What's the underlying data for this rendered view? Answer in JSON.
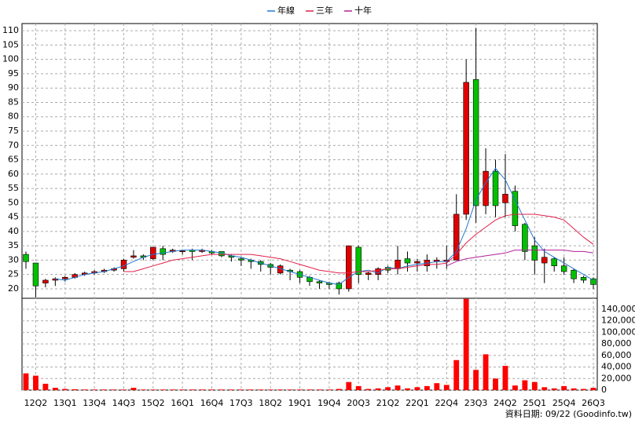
{
  "chart_data": {
    "type": "candlestick",
    "categories": [
      null,
      "12Q2",
      null,
      null,
      "13Q1",
      null,
      null,
      "13Q4",
      null,
      null,
      "14Q3",
      null,
      null,
      "15Q2",
      null,
      null,
      "16Q1",
      null,
      null,
      "16Q4",
      null,
      null,
      "17Q3",
      null,
      null,
      "18Q2",
      null,
      null,
      "19Q1",
      null,
      null,
      "19Q4",
      null,
      null,
      "20Q3",
      null,
      null,
      "21Q2",
      null,
      null,
      "22Q1",
      null,
      null,
      "22Q4",
      null,
      null,
      "23Q3",
      null,
      null,
      "24Q2",
      null,
      null,
      "25Q1",
      null,
      null,
      "25Q4",
      null,
      null,
      "26Q3"
    ],
    "open": [
      32,
      29,
      22,
      23,
      23.5,
      24,
      25,
      25.5,
      26,
      26.5,
      27,
      31,
      31.5,
      30.5,
      34,
      33,
      33,
      33.5,
      33,
      33,
      33,
      31.5,
      30.5,
      30,
      29.5,
      28.5,
      25.5,
      26.5,
      26,
      24,
      22.5,
      22,
      22,
      20,
      34.5,
      25,
      25,
      27.5,
      27,
      30.5,
      29,
      28,
      29.5,
      29.5,
      30,
      46,
      93,
      49,
      61,
      50,
      54,
      42.5,
      35,
      29,
      30.5,
      28,
      26.5,
      24,
      23.5
    ],
    "high": [
      33,
      29,
      23.5,
      24,
      24.5,
      25.5,
      26,
      26.5,
      27,
      27.5,
      30.5,
      33.5,
      32,
      34.5,
      35,
      34,
      33.5,
      34,
      34,
      33.5,
      33,
      32,
      31,
      30.5,
      30,
      29,
      28.5,
      27,
      26.5,
      24.5,
      23,
      22.5,
      22.5,
      35,
      35,
      26,
      27.5,
      28,
      35,
      33,
      30.5,
      32,
      31,
      35,
      53,
      100,
      111,
      69,
      65,
      67,
      56,
      43,
      38,
      34,
      31,
      31,
      27,
      24.5,
      24
    ],
    "low": [
      27,
      17,
      20.5,
      21,
      22.5,
      23.5,
      24.5,
      25,
      25.5,
      26,
      26,
      30.5,
      30,
      30,
      30,
      32.5,
      32,
      30,
      32.5,
      32,
      31,
      29.5,
      28,
      27,
      26,
      25,
      25,
      23,
      22,
      21,
      20,
      20,
      18,
      19,
      22,
      23,
      23,
      25.5,
      25,
      26,
      26,
      26,
      27,
      27,
      30,
      44,
      43,
      46,
      45,
      45,
      40,
      30,
      25,
      22,
      26,
      25,
      22,
      22,
      20
    ],
    "close": [
      29.5,
      21,
      23,
      23.5,
      24,
      25,
      25.5,
      26,
      26.5,
      27,
      30,
      31.5,
      31,
      34.5,
      32,
      33.5,
      33.2,
      33,
      33.5,
      32.5,
      31.5,
      31,
      30,
      29.5,
      28.5,
      27.5,
      28,
      26,
      24,
      22.5,
      22,
      21.5,
      20,
      35,
      25,
      25.5,
      27,
      26.5,
      30,
      29,
      29.5,
      30,
      30,
      30,
      46,
      92,
      49,
      61,
      49,
      53,
      42,
      33,
      30,
      31,
      28,
      26,
      23.5,
      23,
      21.5
    ],
    "volume": [
      29000,
      25000,
      11000,
      4000,
      2000,
      1500,
      1000,
      1000,
      1000,
      1000,
      1000,
      4000,
      1000,
      1000,
      1000,
      1000,
      1000,
      1000,
      1000,
      1000,
      1000,
      1000,
      1000,
      1000,
      1000,
      1000,
      1000,
      1000,
      1000,
      1000,
      1000,
      1000,
      2000,
      14000,
      7000,
      2000,
      3000,
      5000,
      8000,
      3000,
      5000,
      7000,
      12000,
      9000,
      52000,
      158000,
      35000,
      62000,
      20000,
      42000,
      8000,
      17000,
      14000,
      5000,
      3000,
      7000,
      3000,
      2000,
      4000
    ],
    "up_color": "#e00000",
    "down_color": "#00c000",
    "volume_color": "#ff0000",
    "series": [
      {
        "name": "年線",
        "color": "#1f78d0",
        "values": [
          null,
          null,
          null,
          23.5,
          23,
          24,
          25,
          25.5,
          26,
          27,
          28,
          29.5,
          31,
          32,
          32.5,
          33,
          33.5,
          33.5,
          33.5,
          33,
          32.5,
          31.5,
          31,
          30,
          29,
          28,
          27,
          26,
          25,
          24,
          23,
          22,
          21.5,
          24,
          26,
          26.5,
          25.5,
          27.5,
          27,
          28,
          28.5,
          29,
          29.5,
          29.5,
          33,
          41,
          51,
          57,
          62,
          58,
          51,
          44,
          37,
          33,
          31,
          29,
          27,
          25,
          23
        ]
      },
      {
        "name": "三年",
        "color": "#e0204a",
        "values": [
          null,
          null,
          null,
          null,
          null,
          null,
          null,
          null,
          null,
          null,
          26,
          26,
          27,
          28,
          29,
          30,
          30.5,
          31,
          31.5,
          32,
          32,
          32,
          32,
          32,
          31.5,
          31,
          30.5,
          29.5,
          28.5,
          27.5,
          26.5,
          26,
          25.5,
          25.5,
          26,
          26,
          26.5,
          27,
          27,
          27.5,
          28,
          28.5,
          28.5,
          29,
          32,
          36,
          39,
          41.5,
          44,
          45.5,
          46,
          46,
          46,
          45.5,
          45,
          44,
          41,
          38,
          35.5
        ]
      },
      {
        "name": "十年",
        "color": "#b0209a",
        "values": [
          null,
          null,
          null,
          null,
          null,
          null,
          null,
          null,
          null,
          null,
          null,
          null,
          null,
          null,
          null,
          null,
          null,
          null,
          null,
          null,
          null,
          null,
          null,
          null,
          null,
          null,
          null,
          null,
          null,
          null,
          null,
          null,
          null,
          null,
          null,
          null,
          null,
          null,
          null,
          null,
          null,
          null,
          null,
          28,
          29.5,
          30.5,
          31,
          31.5,
          32,
          32.5,
          33.5,
          33.5,
          33.5,
          33.5,
          33.5,
          33.5,
          33,
          33,
          32.5
        ]
      }
    ],
    "ylim": [
      16.7,
      112.5
    ],
    "yticks": [
      20,
      25,
      30,
      35,
      40,
      45,
      50,
      55,
      60,
      65,
      70,
      75,
      80,
      85,
      90,
      95,
      100,
      105,
      110
    ],
    "y2lim": [
      0,
      159000
    ],
    "y2ticks": [
      0,
      {
        "value": 20000,
        "label": "20,000"
      },
      {
        "value": 40000,
        "label": "40,000"
      },
      {
        "value": 60000,
        "label": "60,000"
      },
      {
        "value": 80000,
        "label": "80,000"
      },
      {
        "value": 100000,
        "label": "100,000"
      },
      {
        "value": 120000,
        "label": "120,000"
      },
      {
        "value": 140000,
        "label": "140,000"
      }
    ],
    "grid": true,
    "source_note": "資料日期: 09/22  (Goodinfo.tw)"
  }
}
